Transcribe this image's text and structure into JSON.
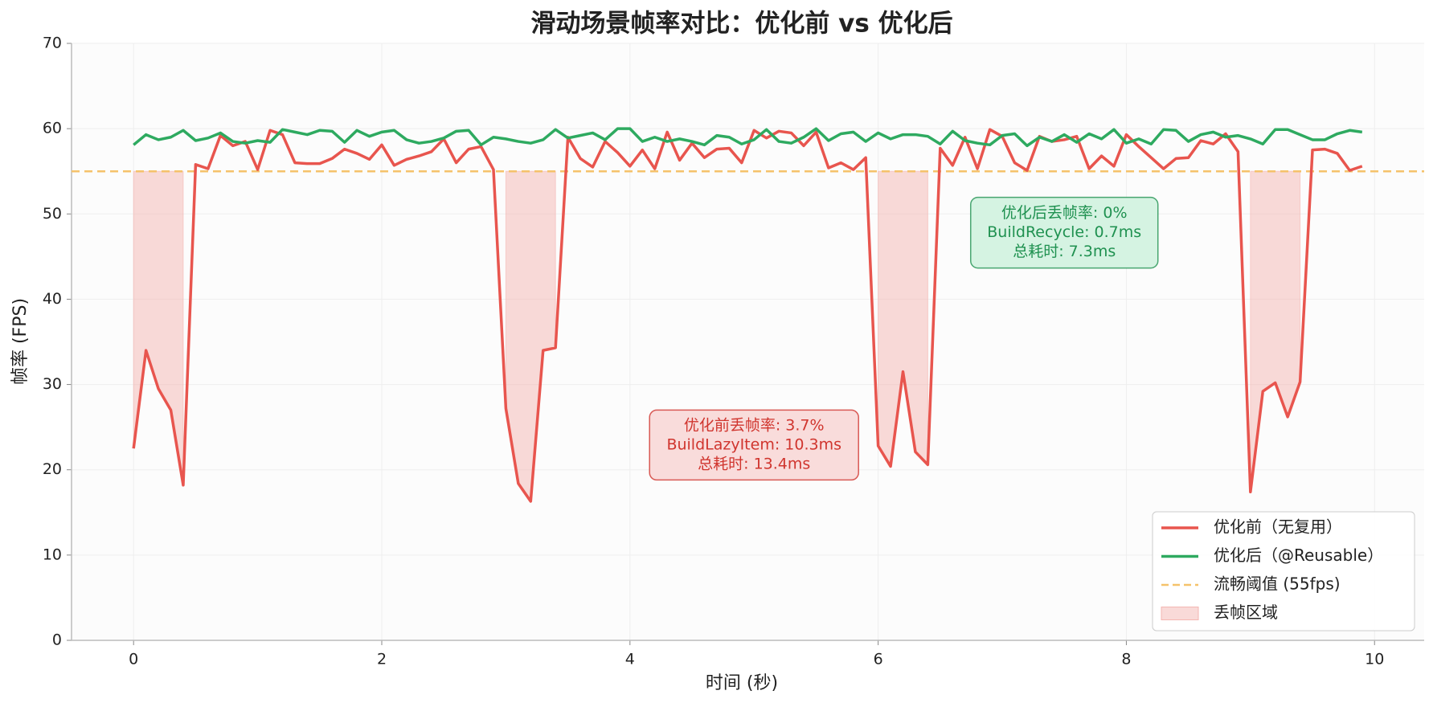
{
  "chart_data": {
    "type": "line",
    "title": "滑动场景帧率对比：优化前 vs 优化后",
    "xlabel": "时间 (秒)",
    "ylabel": "帧率 (FPS)",
    "x": [
      0,
      0.1,
      0.2,
      0.3,
      0.4,
      0.5,
      0.6,
      0.7,
      0.8,
      0.9,
      1,
      1.1,
      1.2,
      1.3,
      1.4,
      1.5,
      1.6,
      1.7,
      1.8,
      1.9,
      2,
      2.1,
      2.2,
      2.3,
      2.4,
      2.5,
      2.6,
      2.7,
      2.8,
      2.9,
      3,
      3.1,
      3.2,
      3.3,
      3.4,
      3.5,
      3.6,
      3.7,
      3.8,
      3.9,
      4,
      4.1,
      4.2,
      4.3,
      4.4,
      4.5,
      4.6,
      4.7,
      4.8,
      4.9,
      5,
      5.1,
      5.2,
      5.3,
      5.4,
      5.5,
      5.6,
      5.7,
      5.8,
      5.9,
      6,
      6.1,
      6.2,
      6.3,
      6.4,
      6.5,
      6.6,
      6.7,
      6.8,
      6.9,
      7,
      7.1,
      7.2,
      7.3,
      7.4,
      7.5,
      7.6,
      7.7,
      7.8,
      7.9,
      8,
      8.1,
      8.2,
      8.3,
      8.4,
      8.5,
      8.6,
      8.7,
      8.8,
      8.9,
      9,
      9.1,
      9.2,
      9.3,
      9.4,
      9.5,
      9.6,
      9.7,
      9.8,
      9.9
    ],
    "series": [
      {
        "name": "优化前（无复用）",
        "color": "#e8554e",
        "values": [
          22.5,
          34,
          29.5,
          27,
          18.2,
          55.8,
          55.3,
          59.2,
          58,
          58.5,
          55.2,
          59.8,
          59.3,
          56,
          55.9,
          55.9,
          56.5,
          57.6,
          57.1,
          56.4,
          58.1,
          55.7,
          56.4,
          56.8,
          57.3,
          58.8,
          56,
          57.6,
          57.9,
          55.2,
          27.2,
          18.4,
          16.3,
          34,
          34.3,
          59,
          56.5,
          55.5,
          58.5,
          57.2,
          55.6,
          57.5,
          55.3,
          59.6,
          56.3,
          58.3,
          56.6,
          57.6,
          57.7,
          56,
          59.8,
          58.9,
          59.7,
          59.5,
          58,
          59.6,
          55.4,
          56,
          55.2,
          56.6,
          22.8,
          20.4,
          31.5,
          22.1,
          20.6,
          57.7,
          55.7,
          59,
          55.3,
          59.9,
          59.1,
          56,
          55.1,
          59.1,
          58.5,
          58.7,
          59.1,
          55.3,
          56.8,
          55.6,
          59.3,
          57.9,
          56.6,
          55.3,
          56.5,
          56.6,
          58.6,
          58.2,
          59.4,
          57.3,
          17.4,
          29.2,
          30.2,
          26.2,
          30.3,
          57.5,
          57.6,
          57.1,
          55.1,
          55.6
        ]
      },
      {
        "name": "优化后（@Reusable）",
        "color": "#2eaa60",
        "values": [
          58.1,
          59.3,
          58.7,
          59,
          59.8,
          58.6,
          58.9,
          59.5,
          58.5,
          58.3,
          58.6,
          58.4,
          59.9,
          59.6,
          59.3,
          59.8,
          59.7,
          58.4,
          59.8,
          59.1,
          59.6,
          59.8,
          58.7,
          58.3,
          58.5,
          58.9,
          59.7,
          59.8,
          58.1,
          59,
          58.8,
          58.5,
          58.3,
          58.7,
          59.9,
          58.9,
          59.2,
          59.5,
          58.7,
          60,
          60,
          58.5,
          59,
          58.5,
          58.8,
          58.5,
          58.1,
          59.2,
          59,
          58.2,
          58.7,
          59.9,
          58.5,
          58.3,
          59,
          60,
          58.6,
          59.4,
          59.6,
          58.5,
          59.5,
          58.8,
          59.3,
          59.3,
          59.1,
          58.2,
          59.7,
          58.6,
          58.3,
          58.1,
          59.2,
          59.4,
          58,
          59,
          58.5,
          59.3,
          58.4,
          59.4,
          58.8,
          59.9,
          58.3,
          58.8,
          58.2,
          59.9,
          59.8,
          58.5,
          59.3,
          59.6,
          59,
          59.2,
          58.8,
          58.2,
          59.9,
          59.9,
          59.3,
          58.7,
          58.7,
          59.4,
          59.8,
          59.6
        ]
      }
    ],
    "threshold": {
      "value": 55,
      "label": "流畅阈值 (55fps)",
      "color": "#f5c26b"
    },
    "fill": {
      "label": "丢帧区域",
      "color": "#f4b6b2"
    },
    "annotations": [
      {
        "text": [
          "优化前丢帧率: 3.7%",
          "BuildLazyItem: 10.3ms",
          "总耗时: 13.4ms"
        ],
        "color": "#d0352e",
        "background": "#f9dcdb"
      },
      {
        "text": [
          "优化后丢帧率: 0%",
          "BuildRecycle: 0.7ms",
          "总耗时: 7.3ms"
        ],
        "color": "#1f9150",
        "background": "#d5f3e2"
      }
    ],
    "xlim": [
      -0.5,
      10.4
    ],
    "ylim": [
      0,
      70
    ],
    "xticks": [
      0,
      2,
      4,
      6,
      8,
      10
    ],
    "yticks": [
      0,
      10,
      20,
      30,
      40,
      50,
      60,
      70
    ],
    "grid": true,
    "legend": "lower right"
  }
}
